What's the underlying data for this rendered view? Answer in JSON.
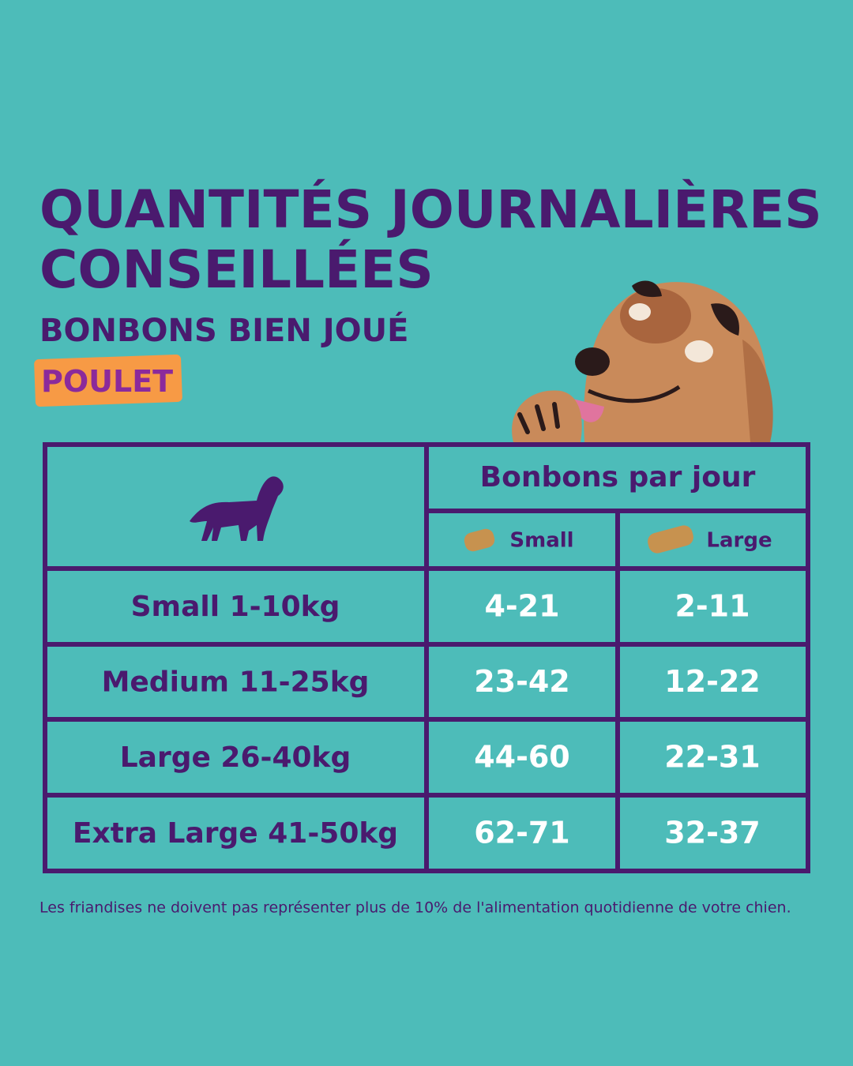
{
  "header": {
    "title_lines": [
      "QUANTITÉS JOURNALIÈRES",
      "CONSEILLÉES"
    ],
    "subtitle": "BONBONS BIEN JOUÉ",
    "tag": "POULET"
  },
  "table": {
    "group_header": "Bonbons par jour",
    "columns": [
      "Small",
      "Large"
    ],
    "rows": [
      [
        "Small 1-10kg",
        "4-21",
        "2-11"
      ],
      [
        "Medium 11-25kg",
        "23-42",
        "12-22"
      ],
      [
        "Large 26-40kg",
        "44-60",
        "22-31"
      ],
      [
        "Extra Large 41-50kg",
        "62-71",
        "32-37"
      ]
    ]
  },
  "footnote": "Les friandises ne doivent pas représenter plus de 10% de l'alimentation quotidienne de votre chien."
}
